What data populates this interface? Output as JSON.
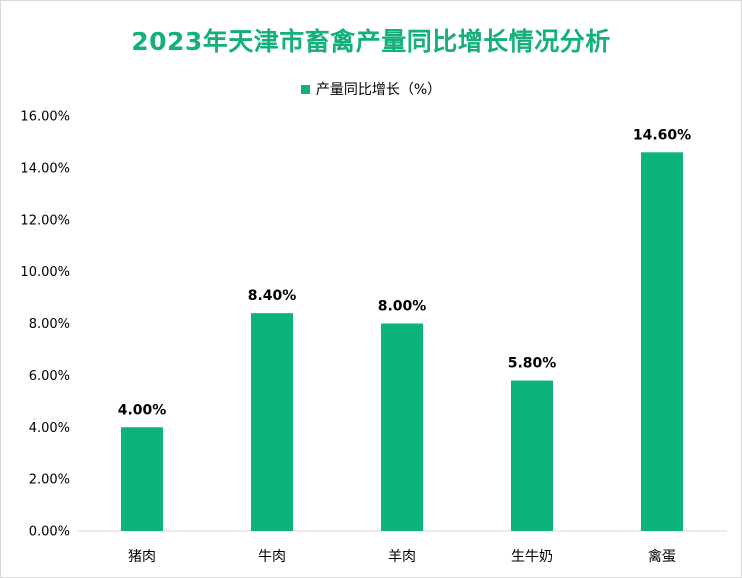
{
  "chart_data": {
    "type": "bar",
    "title": "2023年天津市畜禽产量同比增长情况分析",
    "legend": {
      "label": "产量同比增长（%）",
      "position": "top"
    },
    "categories": [
      "猪肉",
      "牛肉",
      "羊肉",
      "生牛奶",
      "禽蛋"
    ],
    "series": [
      {
        "name": "产量同比增长（%）",
        "values": [
          4.0,
          8.4,
          8.0,
          5.8,
          14.6
        ]
      }
    ],
    "data_labels": [
      "4.00%",
      "8.40%",
      "8.00%",
      "5.80%",
      "14.60%"
    ],
    "ylim": [
      0,
      16
    ],
    "yticks": [
      0,
      2,
      4,
      6,
      8,
      10,
      12,
      14,
      16
    ],
    "ytick_labels": [
      "0.00%",
      "2.00%",
      "4.00%",
      "6.00%",
      "8.00%",
      "10.00%",
      "12.00%",
      "14.00%",
      "16.00%"
    ],
    "xlabel": "",
    "ylabel": "",
    "grid": false,
    "colors": {
      "bar": "#0db37c",
      "title": "#14b07a",
      "axis": "#d9d9d9"
    }
  }
}
